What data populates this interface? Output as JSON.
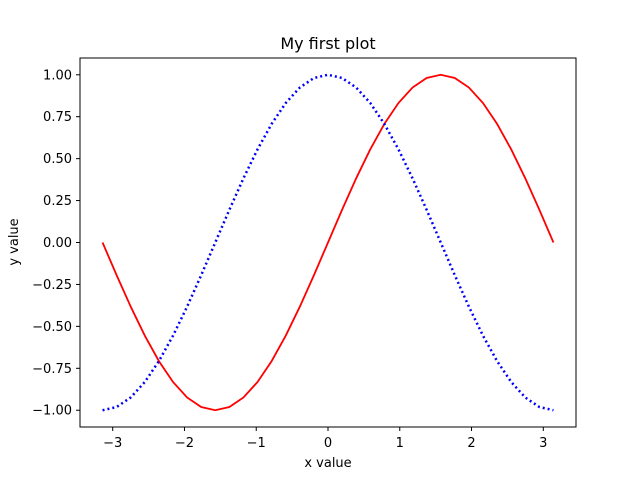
{
  "chart_data": {
    "type": "line",
    "title": "My first plot",
    "xlabel": "x value",
    "ylabel": "y value",
    "xlim": [
      -3.4558,
      3.4558
    ],
    "ylim": [
      -1.1,
      1.1
    ],
    "xticks": [
      -3,
      -2,
      -1,
      0,
      1,
      2,
      3
    ],
    "xtick_labels": [
      "−3",
      "−2",
      "−1",
      "0",
      "1",
      "2",
      "3"
    ],
    "yticks": [
      -1.0,
      -0.75,
      -0.5,
      -0.25,
      0.0,
      0.25,
      0.5,
      0.75,
      1.0
    ],
    "ytick_labels": [
      "−1.00",
      "−0.75",
      "−0.50",
      "−0.25",
      "0.00",
      "0.25",
      "0.50",
      "0.75",
      "1.00"
    ],
    "grid": false,
    "legend": "none",
    "x": [
      -3.1416,
      -2.9452,
      -2.7489,
      -2.5525,
      -2.3562,
      -2.1598,
      -1.9635,
      -1.7671,
      -1.5708,
      -1.3744,
      -1.1781,
      -0.9817,
      -0.7854,
      -0.589,
      -0.3927,
      -0.1963,
      0.0,
      0.1963,
      0.3927,
      0.589,
      0.7854,
      0.9817,
      1.1781,
      1.3744,
      1.5708,
      1.7671,
      1.9635,
      2.1598,
      2.3562,
      2.5525,
      2.7489,
      2.9452,
      3.1416
    ],
    "series": [
      {
        "color": "#ff0000",
        "style": "solid",
        "values": [
          0.0,
          -0.1951,
          -0.3827,
          -0.5556,
          -0.7071,
          -0.8315,
          -0.9239,
          -0.9808,
          -1.0,
          -0.9808,
          -0.9239,
          -0.8315,
          -0.7071,
          -0.5556,
          -0.3827,
          -0.1951,
          0.0,
          0.1951,
          0.3827,
          0.5556,
          0.7071,
          0.8315,
          0.9239,
          0.9808,
          1.0,
          0.9808,
          0.9239,
          0.8315,
          0.7071,
          0.5556,
          0.3827,
          0.1951,
          0.0
        ]
      },
      {
        "color": "#0000ff",
        "style": "dotted",
        "values": [
          -1.0,
          -0.9808,
          -0.9239,
          -0.8315,
          -0.7071,
          -0.5556,
          -0.3827,
          -0.1951,
          0.0,
          0.1951,
          0.3827,
          0.5556,
          0.7071,
          0.8315,
          0.9239,
          0.9808,
          1.0,
          0.9808,
          0.9239,
          0.8315,
          0.7071,
          0.5556,
          0.3827,
          0.1951,
          0.0,
          -0.1951,
          -0.3827,
          -0.5556,
          -0.7071,
          -0.8315,
          -0.9239,
          -0.9808,
          -1.0
        ]
      }
    ]
  }
}
